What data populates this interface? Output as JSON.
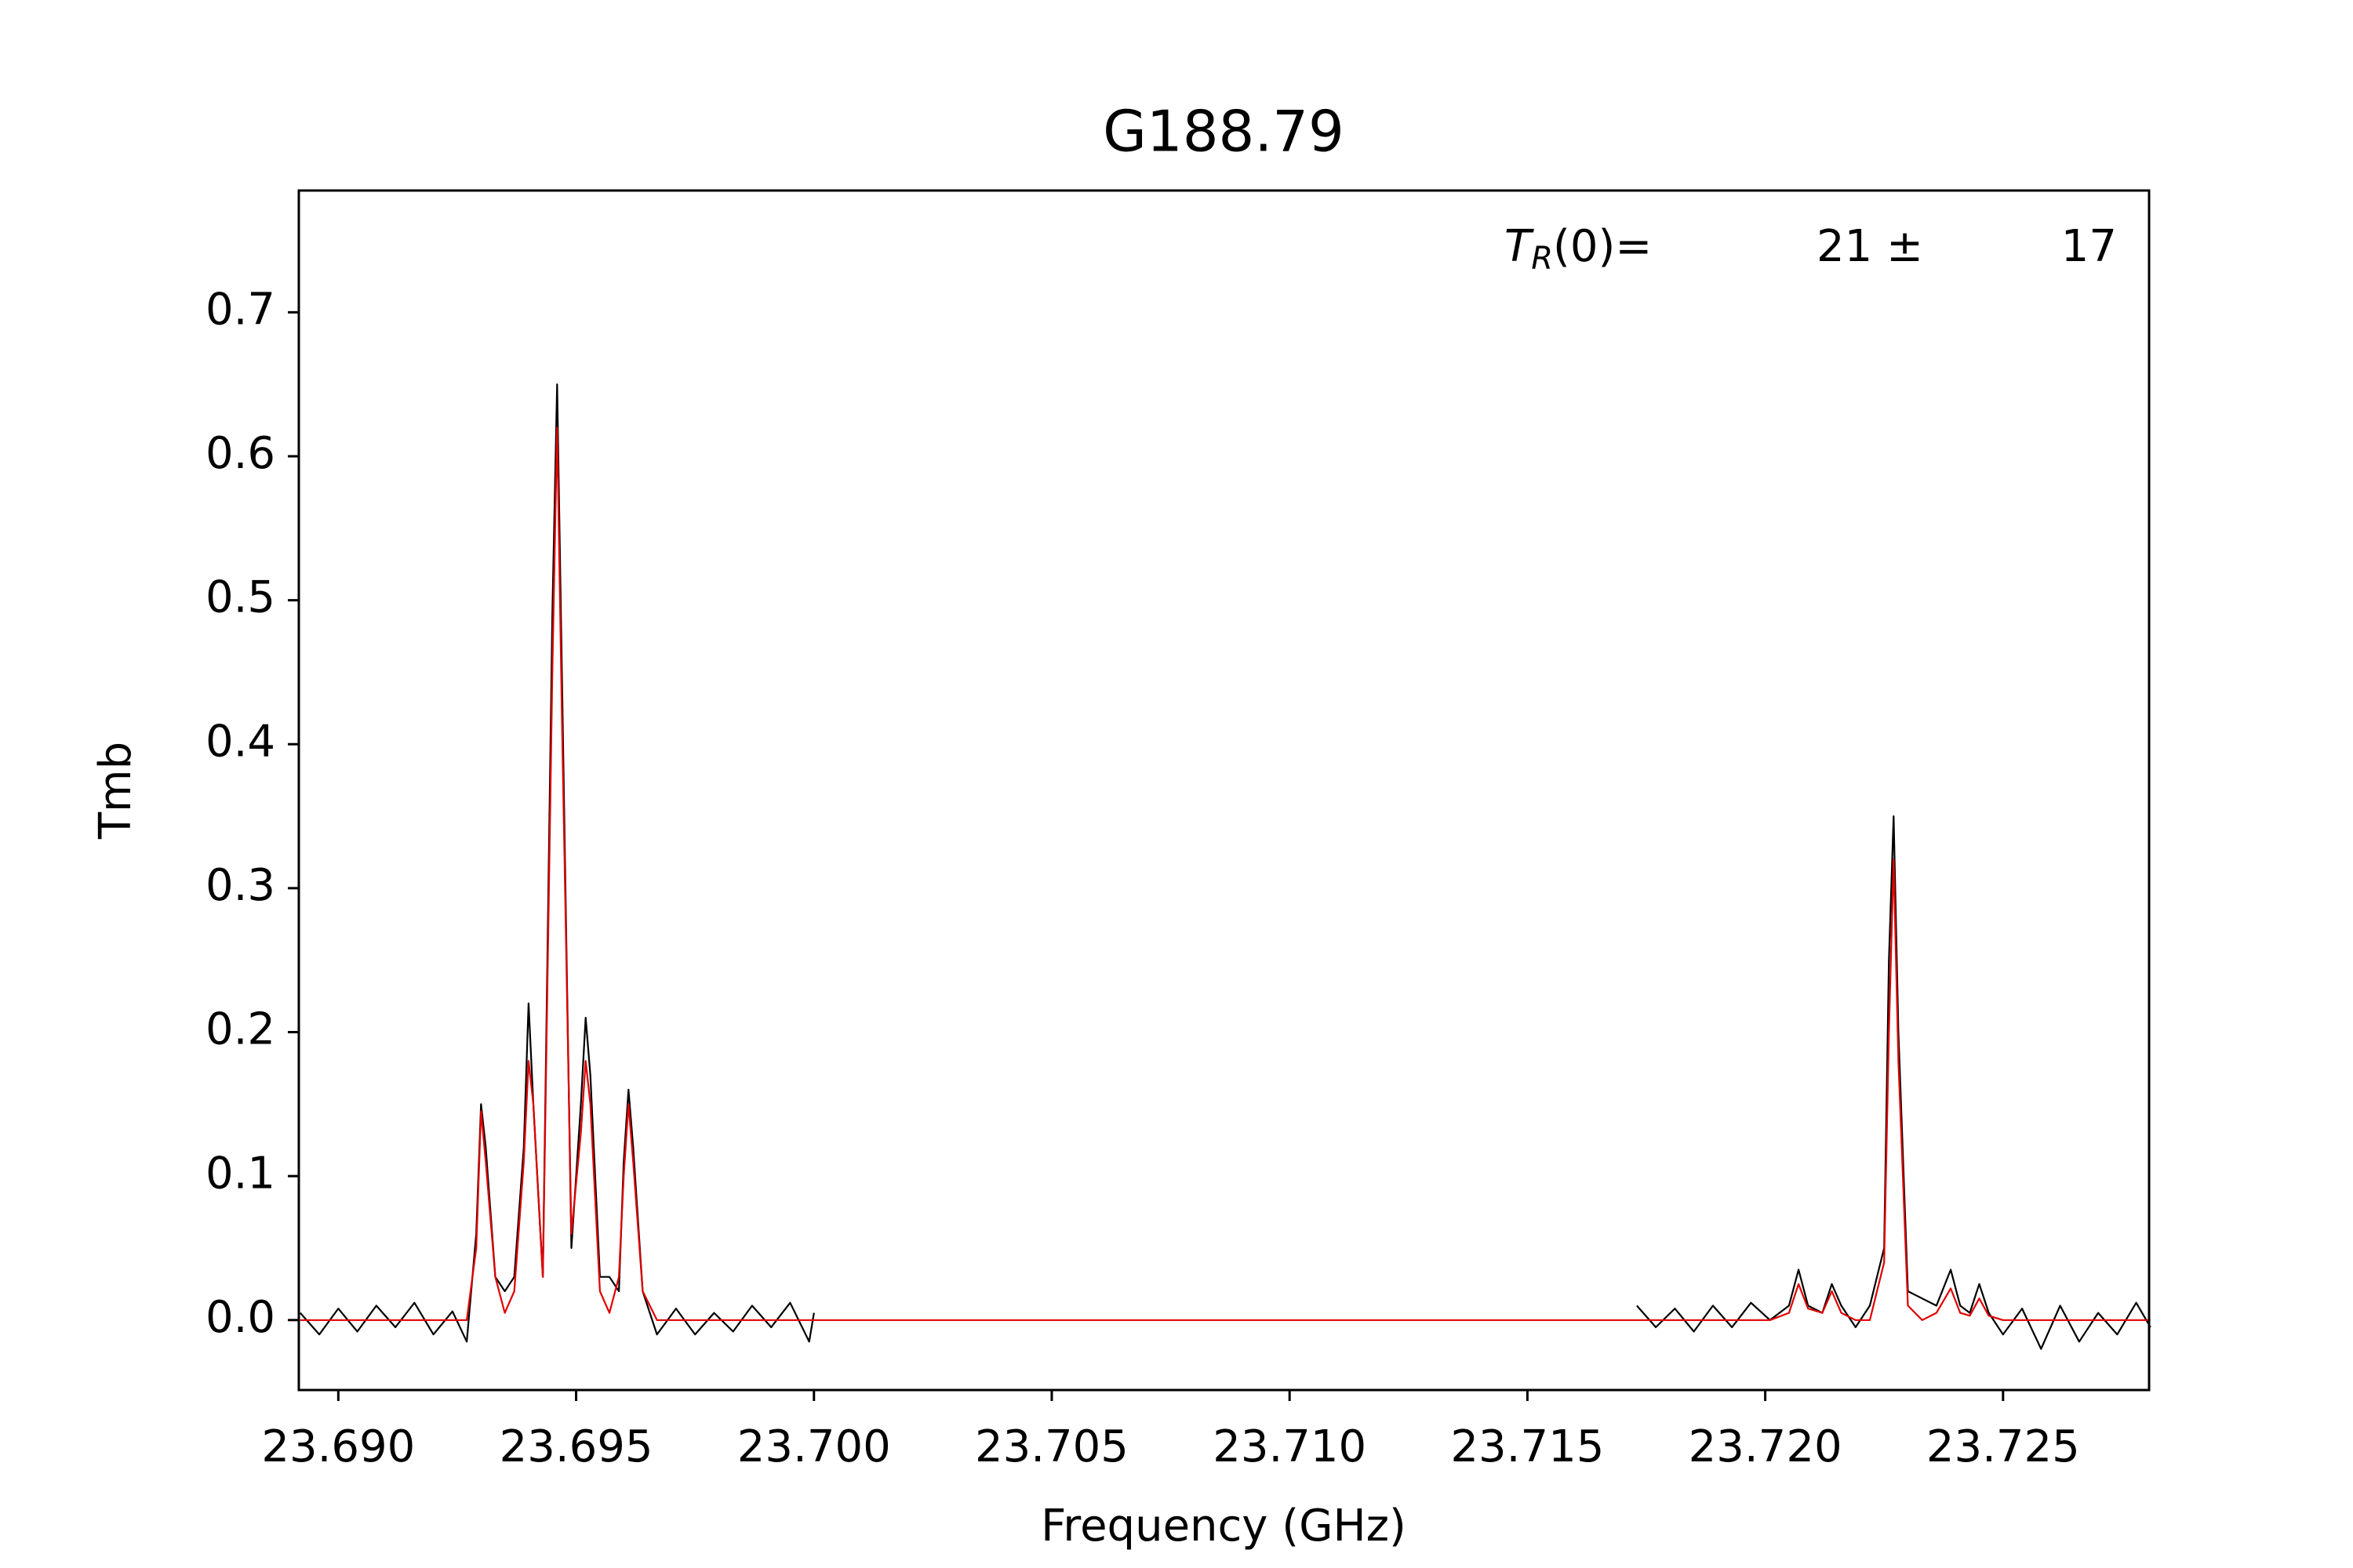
{
  "chart_data": {
    "type": "line",
    "title": "G188.79",
    "x_label": "Frequency (GHz)",
    "y_label": "Tmb",
    "annotation": {
      "symbol": "T",
      "subscript": "R",
      "suffix": "(0)=",
      "value": "21 ±",
      "error": "17"
    },
    "x": [
      23.6892,
      23.6896,
      23.69,
      23.6904,
      23.6908,
      23.6912,
      23.6916,
      23.692,
      23.6924,
      23.6927,
      23.6929,
      23.693,
      23.6931,
      23.6933,
      23.6935,
      23.6937,
      23.6939,
      23.694,
      23.6941,
      23.6943,
      23.6945,
      23.6946,
      23.6947,
      23.6949,
      23.6951,
      23.6952,
      23.6953,
      23.6955,
      23.6957,
      23.6959,
      23.696,
      23.6961,
      23.6962,
      23.6964,
      23.6967,
      23.6971,
      23.6975,
      23.6979,
      23.6983,
      23.6987,
      23.6991,
      23.6995,
      23.6999,
      23.7,
      23.705,
      23.71,
      23.715,
      23.7173,
      23.7177,
      23.7181,
      23.7185,
      23.7189,
      23.7193,
      23.7197,
      23.7201,
      23.7205,
      23.7207,
      23.7209,
      23.7212,
      23.7214,
      23.7216,
      23.7219,
      23.7222,
      23.7225,
      23.7226,
      23.7227,
      23.7228,
      23.723,
      23.7233,
      23.7236,
      23.7239,
      23.7241,
      23.7243,
      23.7245,
      23.7247,
      23.725,
      23.7254,
      23.7258,
      23.7262,
      23.7266,
      23.727,
      23.7274,
      23.7278,
      23.7281
    ],
    "series": [
      {
        "color": "#000000",
        "values": [
          0.005,
          -0.01,
          0.008,
          -0.008,
          0.01,
          -0.005,
          0.012,
          -0.01,
          0.006,
          -0.015,
          0.06,
          0.15,
          0.12,
          0.03,
          0.02,
          0.03,
          0.12,
          0.22,
          0.15,
          0.03,
          0.49,
          0.65,
          0.45,
          0.05,
          0.15,
          0.21,
          0.17,
          0.03,
          0.03,
          0.02,
          0.11,
          0.16,
          0.12,
          0.02,
          -0.01,
          0.008,
          -0.01,
          0.005,
          -0.008,
          0.01,
          -0.005,
          0.012,
          -0.015,
          0.005,
          null,
          null,
          null,
          0.01,
          -0.005,
          0.008,
          -0.008,
          0.01,
          -0.005,
          0.012,
          0,
          0.01,
          0.035,
          0.01,
          0.005,
          0.025,
          0.01,
          -0.005,
          0.01,
          0.05,
          0.25,
          0.35,
          0.2,
          0.02,
          0.015,
          0.01,
          0.035,
          0.01,
          0.005,
          0.025,
          0.005,
          -0.01,
          0.008,
          -0.02,
          0.01,
          -0.015,
          0.005,
          -0.01,
          0.012,
          -0.005
        ]
      },
      {
        "color": "#e00000",
        "values": [
          0,
          0,
          0,
          0,
          0,
          0,
          0,
          0,
          0,
          0,
          0.05,
          0.145,
          0.11,
          0.03,
          0.005,
          0.02,
          0.11,
          0.18,
          0.15,
          0.03,
          0.45,
          0.62,
          0.42,
          0.06,
          0.13,
          0.18,
          0.15,
          0.02,
          0.005,
          0.03,
          0.1,
          0.15,
          0.11,
          0.02,
          0,
          0,
          0,
          0,
          0,
          0,
          0,
          0,
          0,
          0,
          0,
          0,
          0,
          0,
          0,
          0,
          0,
          0,
          0,
          0,
          0,
          0.005,
          0.025,
          0.008,
          0.005,
          0.02,
          0.005,
          0,
          0,
          0.04,
          0.2,
          0.32,
          0.18,
          0.01,
          0,
          0.005,
          0.022,
          0.005,
          0.003,
          0.015,
          0.003,
          0,
          0,
          0,
          0,
          0,
          0,
          0,
          0,
          0
        ]
      }
    ],
    "xlim": [
      23.68917,
      23.72807
    ],
    "xticks": [
      {
        "value": 23.69,
        "label": "23.690"
      },
      {
        "value": 23.695,
        "label": "23.695"
      },
      {
        "value": 23.7,
        "label": "23.700"
      },
      {
        "value": 23.705,
        "label": "23.705"
      },
      {
        "value": 23.71,
        "label": "23.710"
      },
      {
        "value": 23.715,
        "label": "23.715"
      },
      {
        "value": 23.72,
        "label": "23.720"
      },
      {
        "value": 23.725,
        "label": "23.725"
      }
    ],
    "ylim": [
      -0.0486,
      0.7846
    ],
    "yticks": [
      {
        "value": 0,
        "label": "0.0"
      },
      0.1,
      0.2,
      0.3,
      0.4,
      0.5,
      0.6,
      0.7
    ],
    "grid": false
  }
}
